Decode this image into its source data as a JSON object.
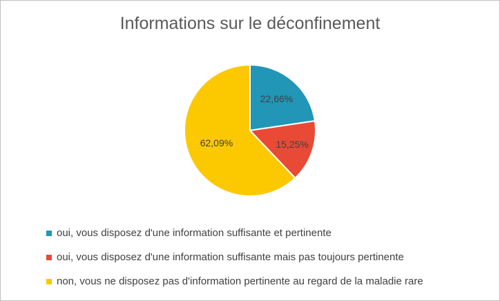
{
  "chart_data": {
    "type": "pie",
    "title": "Informations sur le déconfinement",
    "slices": [
      {
        "label": "oui, vous disposez d'une information suffisante et pertinente",
        "value": 22.66,
        "data_label": "22,66%",
        "color": "#2196b6"
      },
      {
        "label": "oui, vous disposez d'une information suffisante mais pas toujours pertinente",
        "value": 15.25,
        "data_label": "15,25%",
        "color": "#e84a36"
      },
      {
        "label": "non, vous ne disposez pas d'information pertinente au regard de la maladie rare",
        "value": 62.09,
        "data_label": "62,09%",
        "color": "#fcc800"
      }
    ],
    "legend_position": "bottom"
  }
}
